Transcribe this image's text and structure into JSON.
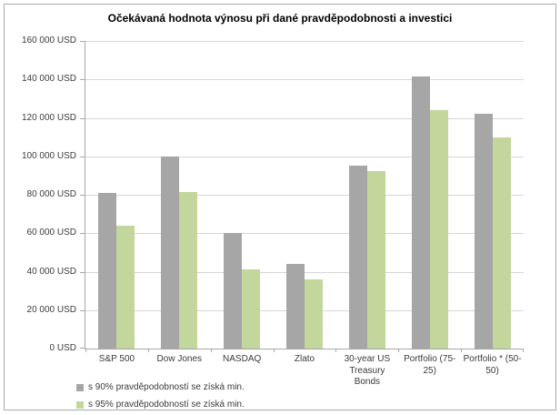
{
  "chart_data": {
    "type": "bar",
    "title": "Očekávaná hodnota výnosu při dané pravděpodobnosti a investici",
    "categories": [
      "S&P 500",
      "Dow Jones",
      "NASDAQ",
      "Zlato",
      "30-year US Treasury Bonds",
      "Portfolio  (75-25)",
      "Portfolio * (50-50)"
    ],
    "series": [
      {
        "name": "s 90% pravděpodobností se získá min.",
        "color": "#a6a6a6",
        "values": [
          81000,
          100000,
          60000,
          44000,
          95000,
          141500,
          122000
        ]
      },
      {
        "name": "s 95% pravděpodobností se získá min.",
        "color": "#c3d69b",
        "values": [
          64000,
          81500,
          41000,
          36000,
          92500,
          124000,
          110000
        ]
      }
    ],
    "ylim": [
      0,
      160000
    ],
    "ytick_step": 20000,
    "yticks": [
      "0 USD",
      "20 000 USD",
      "40 000 USD",
      "60 000 USD",
      "80 000 USD",
      "100 000 USD",
      "120 000 USD",
      "140 000 USD",
      "160 000 USD"
    ],
    "xlabel": "",
    "ylabel": "",
    "grid": "horizontal",
    "legend_position": "bottom-left",
    "colors": {
      "gridline": "#d6d6d6",
      "axis": "#a6a6a6",
      "frame_border": "#a9a9a9",
      "label_text": "#3a3a3a",
      "title_text": "#000000"
    }
  }
}
